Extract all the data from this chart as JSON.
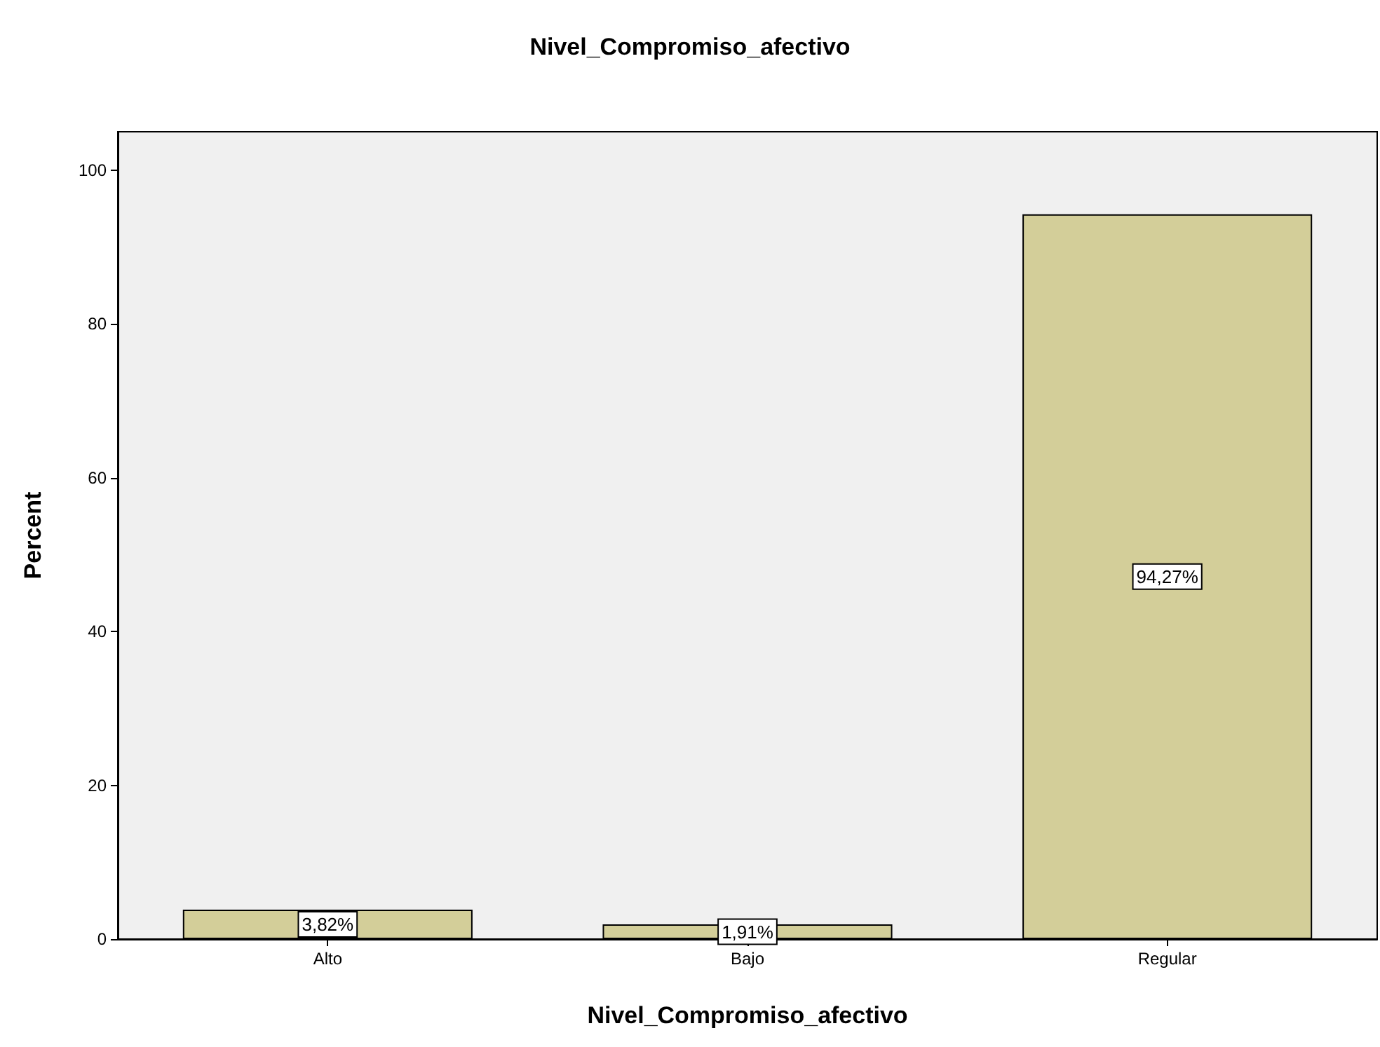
{
  "chart_data": {
    "type": "bar",
    "title": "Nivel_Compromiso_afectivo",
    "xlabel": "Nivel_Compromiso_afectivo",
    "ylabel": "Percent",
    "categories": [
      "Alto",
      "Bajo",
      "Regular"
    ],
    "values": [
      3.82,
      1.91,
      94.27
    ],
    "value_labels": [
      "3,82%",
      "1,91%",
      "94,27%"
    ],
    "color": "#d3ce99",
    "ylim": [
      0,
      105
    ],
    "yticks": [
      0,
      20,
      40,
      60,
      80,
      100
    ],
    "grid": false
  }
}
